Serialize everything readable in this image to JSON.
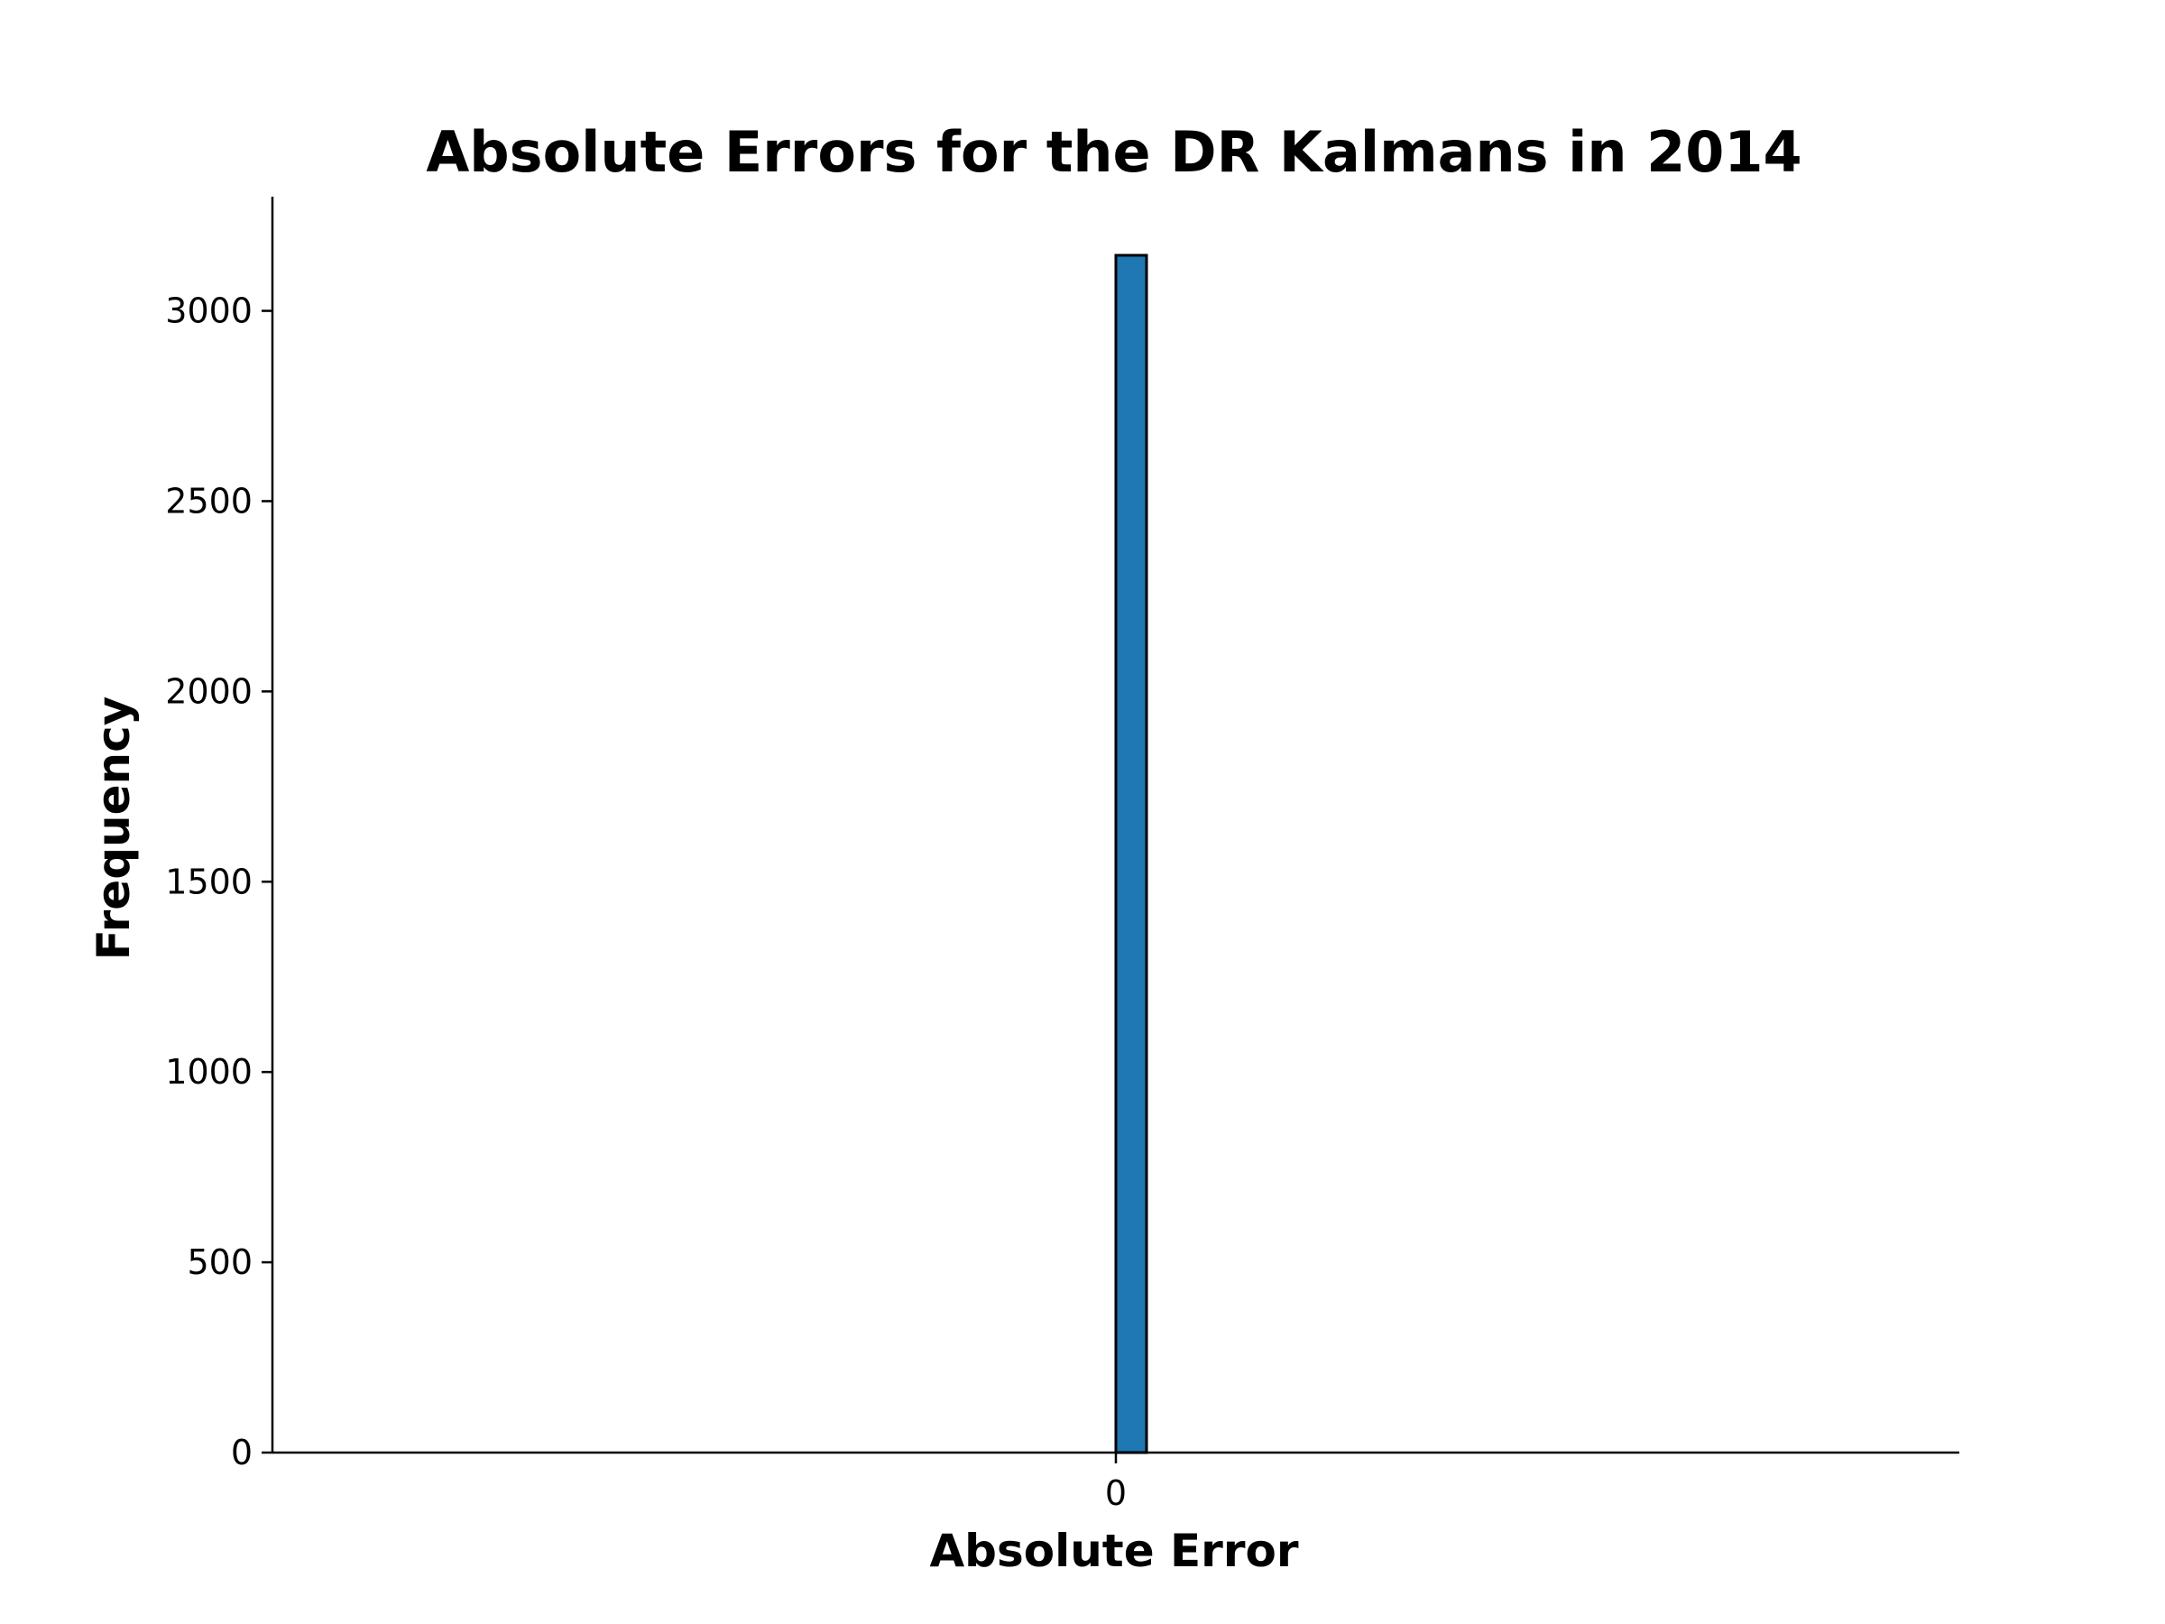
{
  "chart_data": {
    "type": "bar",
    "title": "Absolute Errors for the DR Kalmans in 2014",
    "xlabel": "Absolute Error",
    "ylabel": "Frequency",
    "xlim": [
      -0.055,
      0.055
    ],
    "ylim": [
      0,
      3300
    ],
    "x_ticks": [
      0
    ],
    "x_tick_labels": [
      "0"
    ],
    "y_ticks": [
      0,
      500,
      1000,
      1500,
      2000,
      2500,
      3000
    ],
    "y_tick_labels": [
      "0",
      "500",
      "1000",
      "1500",
      "2000",
      "2500",
      "3000"
    ],
    "bin_range": [
      -0.05,
      0.05
    ],
    "bins": 50,
    "values": [
      0,
      0,
      0,
      0,
      0,
      0,
      0,
      0,
      0,
      0,
      0,
      0,
      0,
      0,
      0,
      0,
      0,
      0,
      0,
      0,
      0,
      0,
      0,
      0,
      0,
      3146,
      0,
      0,
      0,
      0,
      0,
      0,
      0,
      0,
      0,
      0,
      0,
      0,
      0,
      0,
      0,
      0,
      0,
      0,
      0,
      0,
      0,
      0,
      0,
      0
    ],
    "bar_color": "#1f77b4",
    "edge_color": "#000000",
    "grid": false,
    "legend": "none"
  }
}
